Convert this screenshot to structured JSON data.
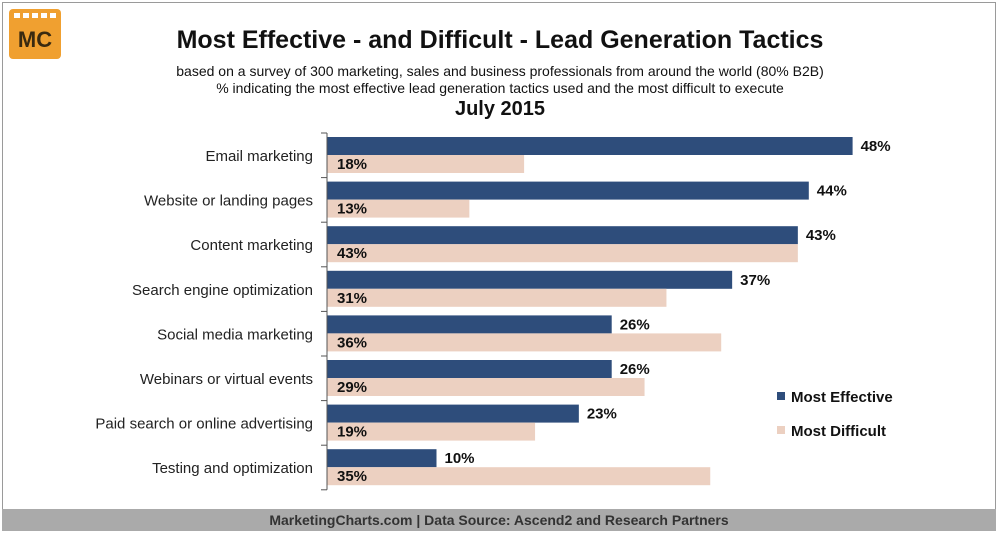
{
  "header": {
    "logo_text": "MC",
    "title": "Most Effective - and Difficult - Lead Generation Tactics",
    "subtitle_line1": "based on a survey of 300 marketing, sales and business professionals from around the world (80% B2B)",
    "subtitle_line2": "% indicating the most effective lead generation tactics used and the most difficult to execute",
    "date": "July 2015"
  },
  "footer": {
    "text": "MarketingCharts.com | Data Source: Ascend2 and Research Partners"
  },
  "colors": {
    "most_effective": "#2e4d7b",
    "most_difficult": "#ecd0c1",
    "logo_orange": "#f0a030"
  },
  "chart_data": {
    "type": "bar",
    "orientation": "horizontal",
    "title": "Most Effective - and Difficult - Lead Generation Tactics",
    "categories": [
      "Email marketing",
      "Website or landing pages",
      "Content marketing",
      "Search engine optimization",
      "Social media marketing",
      "Webinars or virtual events",
      "Paid search or online advertising",
      "Testing and optimization"
    ],
    "series": [
      {
        "name": "Most Effective",
        "values": [
          48,
          44,
          43,
          37,
          26,
          26,
          23,
          10
        ],
        "labels": [
          "48%",
          "44%",
          "43%",
          "37%",
          "26%",
          "26%",
          "23%",
          "10%"
        ]
      },
      {
        "name": "Most Difficult",
        "values": [
          18,
          13,
          43,
          31,
          36,
          29,
          19,
          35
        ],
        "labels": [
          "18%",
          "13%",
          "43%",
          "31%",
          "36%",
          "29%",
          "19%",
          "35%"
        ]
      }
    ],
    "xlim": [
      0,
      50
    ],
    "unit": "%",
    "grid": false,
    "legend_position": "right"
  }
}
